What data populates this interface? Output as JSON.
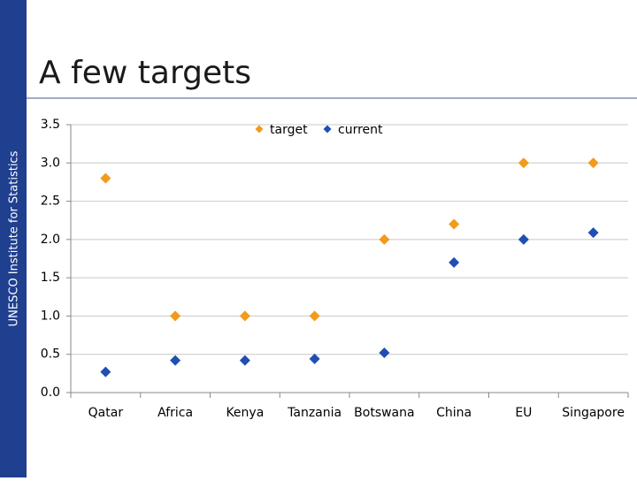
{
  "sidebar_label": "UNESCO Institute for Statistics",
  "chart_data": {
    "type": "scatter",
    "title": "A few targets",
    "categories": [
      "Qatar",
      "Africa",
      "Kenya",
      "Tanzania",
      "Botswana",
      "China",
      "EU",
      "Singapore"
    ],
    "series": [
      {
        "name": "target",
        "color": "#f29a1c",
        "values": [
          2.8,
          1.0,
          1.0,
          1.0,
          2.0,
          2.2,
          3.0,
          3.0
        ]
      },
      {
        "name": "current",
        "color": "#1f4fb5",
        "values": [
          0.27,
          0.42,
          0.42,
          0.44,
          0.52,
          1.7,
          2.0,
          2.09
        ]
      }
    ],
    "ylim": [
      0,
      3.5
    ],
    "yticks": [
      {
        "value": 0,
        "label": "0.0"
      },
      0.5,
      {
        "value": 1,
        "label": "1.0"
      },
      1.5,
      {
        "value": 2,
        "label": "2.0"
      },
      2.5,
      {
        "value": 3,
        "label": "3.0"
      },
      3.5
    ],
    "grid": true,
    "legend": "top"
  }
}
